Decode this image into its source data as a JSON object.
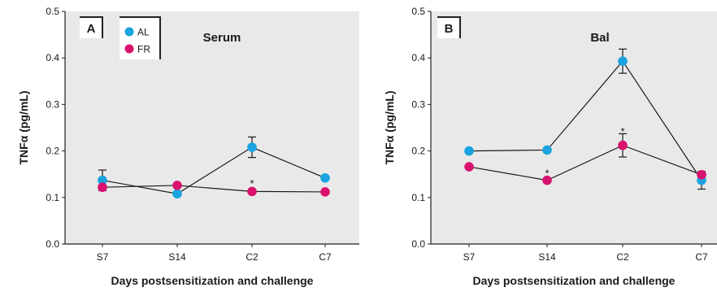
{
  "chart_data": [
    {
      "type": "line",
      "panel_label": "A",
      "title": "Serum",
      "ylabel": "TNFα (pg/mL)",
      "xlabel": "Days postsensitization and challenge",
      "categories": [
        "S7",
        "S14",
        "C2",
        "C7"
      ],
      "ylim": [
        0.0,
        0.5
      ],
      "yticks": [
        "0.0",
        "0.1",
        "0.2",
        "0.3",
        "0.4",
        "0.5"
      ],
      "grid": false,
      "legend_placement": "top-left",
      "series": [
        {
          "name": "AL",
          "color": "#1aa3e0",
          "values": [
            0.137,
            0.108,
            0.208,
            0.142
          ],
          "error": [
            0.022,
            0.0,
            0.022,
            0.0
          ]
        },
        {
          "name": "FR",
          "color": "#d8126e",
          "values": [
            0.122,
            0.126,
            0.113,
            0.112
          ],
          "error": [
            0.0,
            0.0,
            0.0,
            0.0
          ]
        }
      ],
      "annotations": [
        {
          "category": "C2",
          "text": "*",
          "value": 0.133
        }
      ]
    },
    {
      "type": "line",
      "panel_label": "B",
      "title": "Bal",
      "ylabel": "TNFα (pg/mL)",
      "xlabel": "Days postsensitization and challenge",
      "categories": [
        "S7",
        "S14",
        "C2",
        "C7"
      ],
      "ylim": [
        0.0,
        0.5
      ],
      "yticks": [
        "0.0",
        "0.1",
        "0.2",
        "0.3",
        "0.4",
        "0.5"
      ],
      "grid": false,
      "series": [
        {
          "name": "AL",
          "color": "#1aa3e0",
          "values": [
            0.2,
            0.202,
            0.393,
            0.137
          ],
          "error": [
            0.0,
            0.0,
            0.026,
            0.019
          ]
        },
        {
          "name": "FR",
          "color": "#d8126e",
          "values": [
            0.166,
            0.137,
            0.212,
            0.149
          ],
          "error": [
            0.0,
            0.0,
            0.025,
            0.0
          ]
        }
      ],
      "annotations": [
        {
          "category": "S14",
          "text": "*",
          "value": 0.155
        },
        {
          "category": "C2",
          "text": "*",
          "value": 0.245
        }
      ]
    }
  ],
  "colors": {
    "plot_bg": "#e9e9e9",
    "axis": "#222222",
    "line": "#1a1a1a"
  }
}
